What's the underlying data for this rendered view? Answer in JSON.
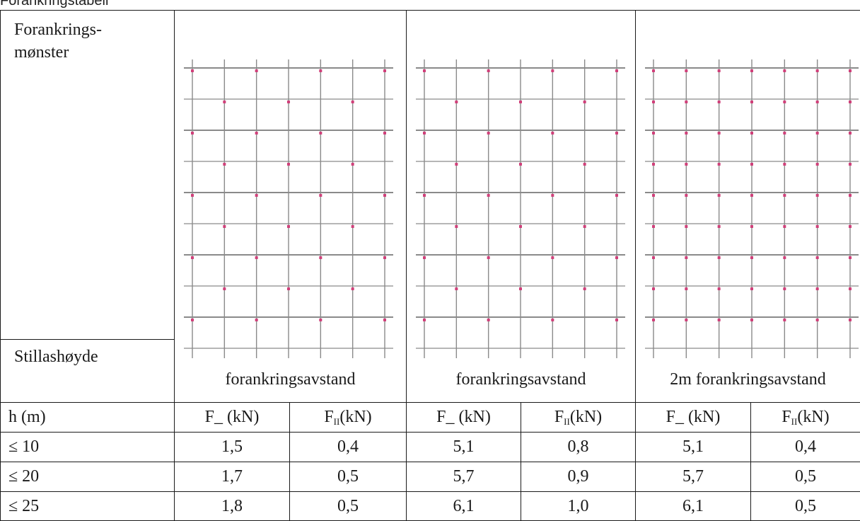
{
  "caption": "Forankringstabell",
  "header": {
    "pattern_label_line1": "Forankrings-",
    "pattern_label_line2": "mønster",
    "height_label": "Stillashøyde",
    "groups": [
      {
        "label": "forankringsavstand"
      },
      {
        "label": "forankringsavstand"
      },
      {
        "label": "2m forankringsavstand"
      }
    ]
  },
  "columns": {
    "h_label": "h (m)",
    "f_perp_label": "F_ (kN)",
    "f_par_prefix": "F",
    "f_par_sub": "II",
    "f_par_suffix": "(kN)"
  },
  "rows": [
    {
      "h": "≤ 10",
      "values": [
        "1,5",
        "0,4",
        "5,1",
        "0,8",
        "5,1",
        "0,4"
      ]
    },
    {
      "h": "≤ 20",
      "values": [
        "1,7",
        "0,5",
        "5,7",
        "0,9",
        "5,7",
        "0,5"
      ]
    },
    {
      "h": "≤ 25",
      "values": [
        "1,8",
        "0,5",
        "6,1",
        "1,0",
        "6,1",
        "0,5"
      ]
    }
  ],
  "colors": {
    "grid_line": "#8a8a8a",
    "anchor_dot": "#d0407a",
    "border": "#1a1a1a"
  }
}
